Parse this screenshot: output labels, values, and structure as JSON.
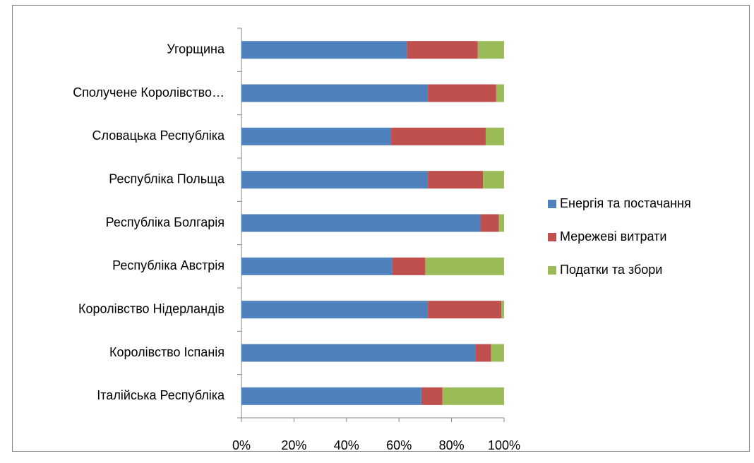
{
  "chart_data": {
    "type": "stacked-bar-horizontal",
    "categories": [
      "Угорщина",
      "Сполучене Королівство…",
      "Словацька Республіка",
      "Республіка Польща",
      "Республіка Болгарія",
      "Республіка Австрія",
      "Королівство Нідерландів",
      "Королівство Іспанія",
      "Італійська Республіка"
    ],
    "series": [
      {
        "name": "Енергія та постачання",
        "color": "#4f81bd",
        "values": [
          63,
          71,
          57,
          71,
          91,
          57.5,
          71,
          89,
          68.5
        ]
      },
      {
        "name": "Мережеві витрати",
        "color": "#c0504d",
        "values": [
          27,
          26,
          36,
          21,
          7,
          12.5,
          28,
          6,
          8
        ]
      },
      {
        "name": "Податки та збори",
        "color": "#9bbb59",
        "values": [
          10,
          3,
          7,
          8,
          2,
          30,
          1,
          5,
          23.5
        ]
      }
    ],
    "xlim": [
      0,
      100
    ],
    "xticks": [
      {
        "value": 0,
        "label": "0%"
      },
      {
        "value": 20,
        "label": "20%"
      },
      {
        "value": 40,
        "label": "40%"
      },
      {
        "value": 60,
        "label": "60%"
      },
      {
        "value": 80,
        "label": "80%"
      },
      {
        "value": 100,
        "label": "100%"
      }
    ],
    "legend": "right"
  }
}
